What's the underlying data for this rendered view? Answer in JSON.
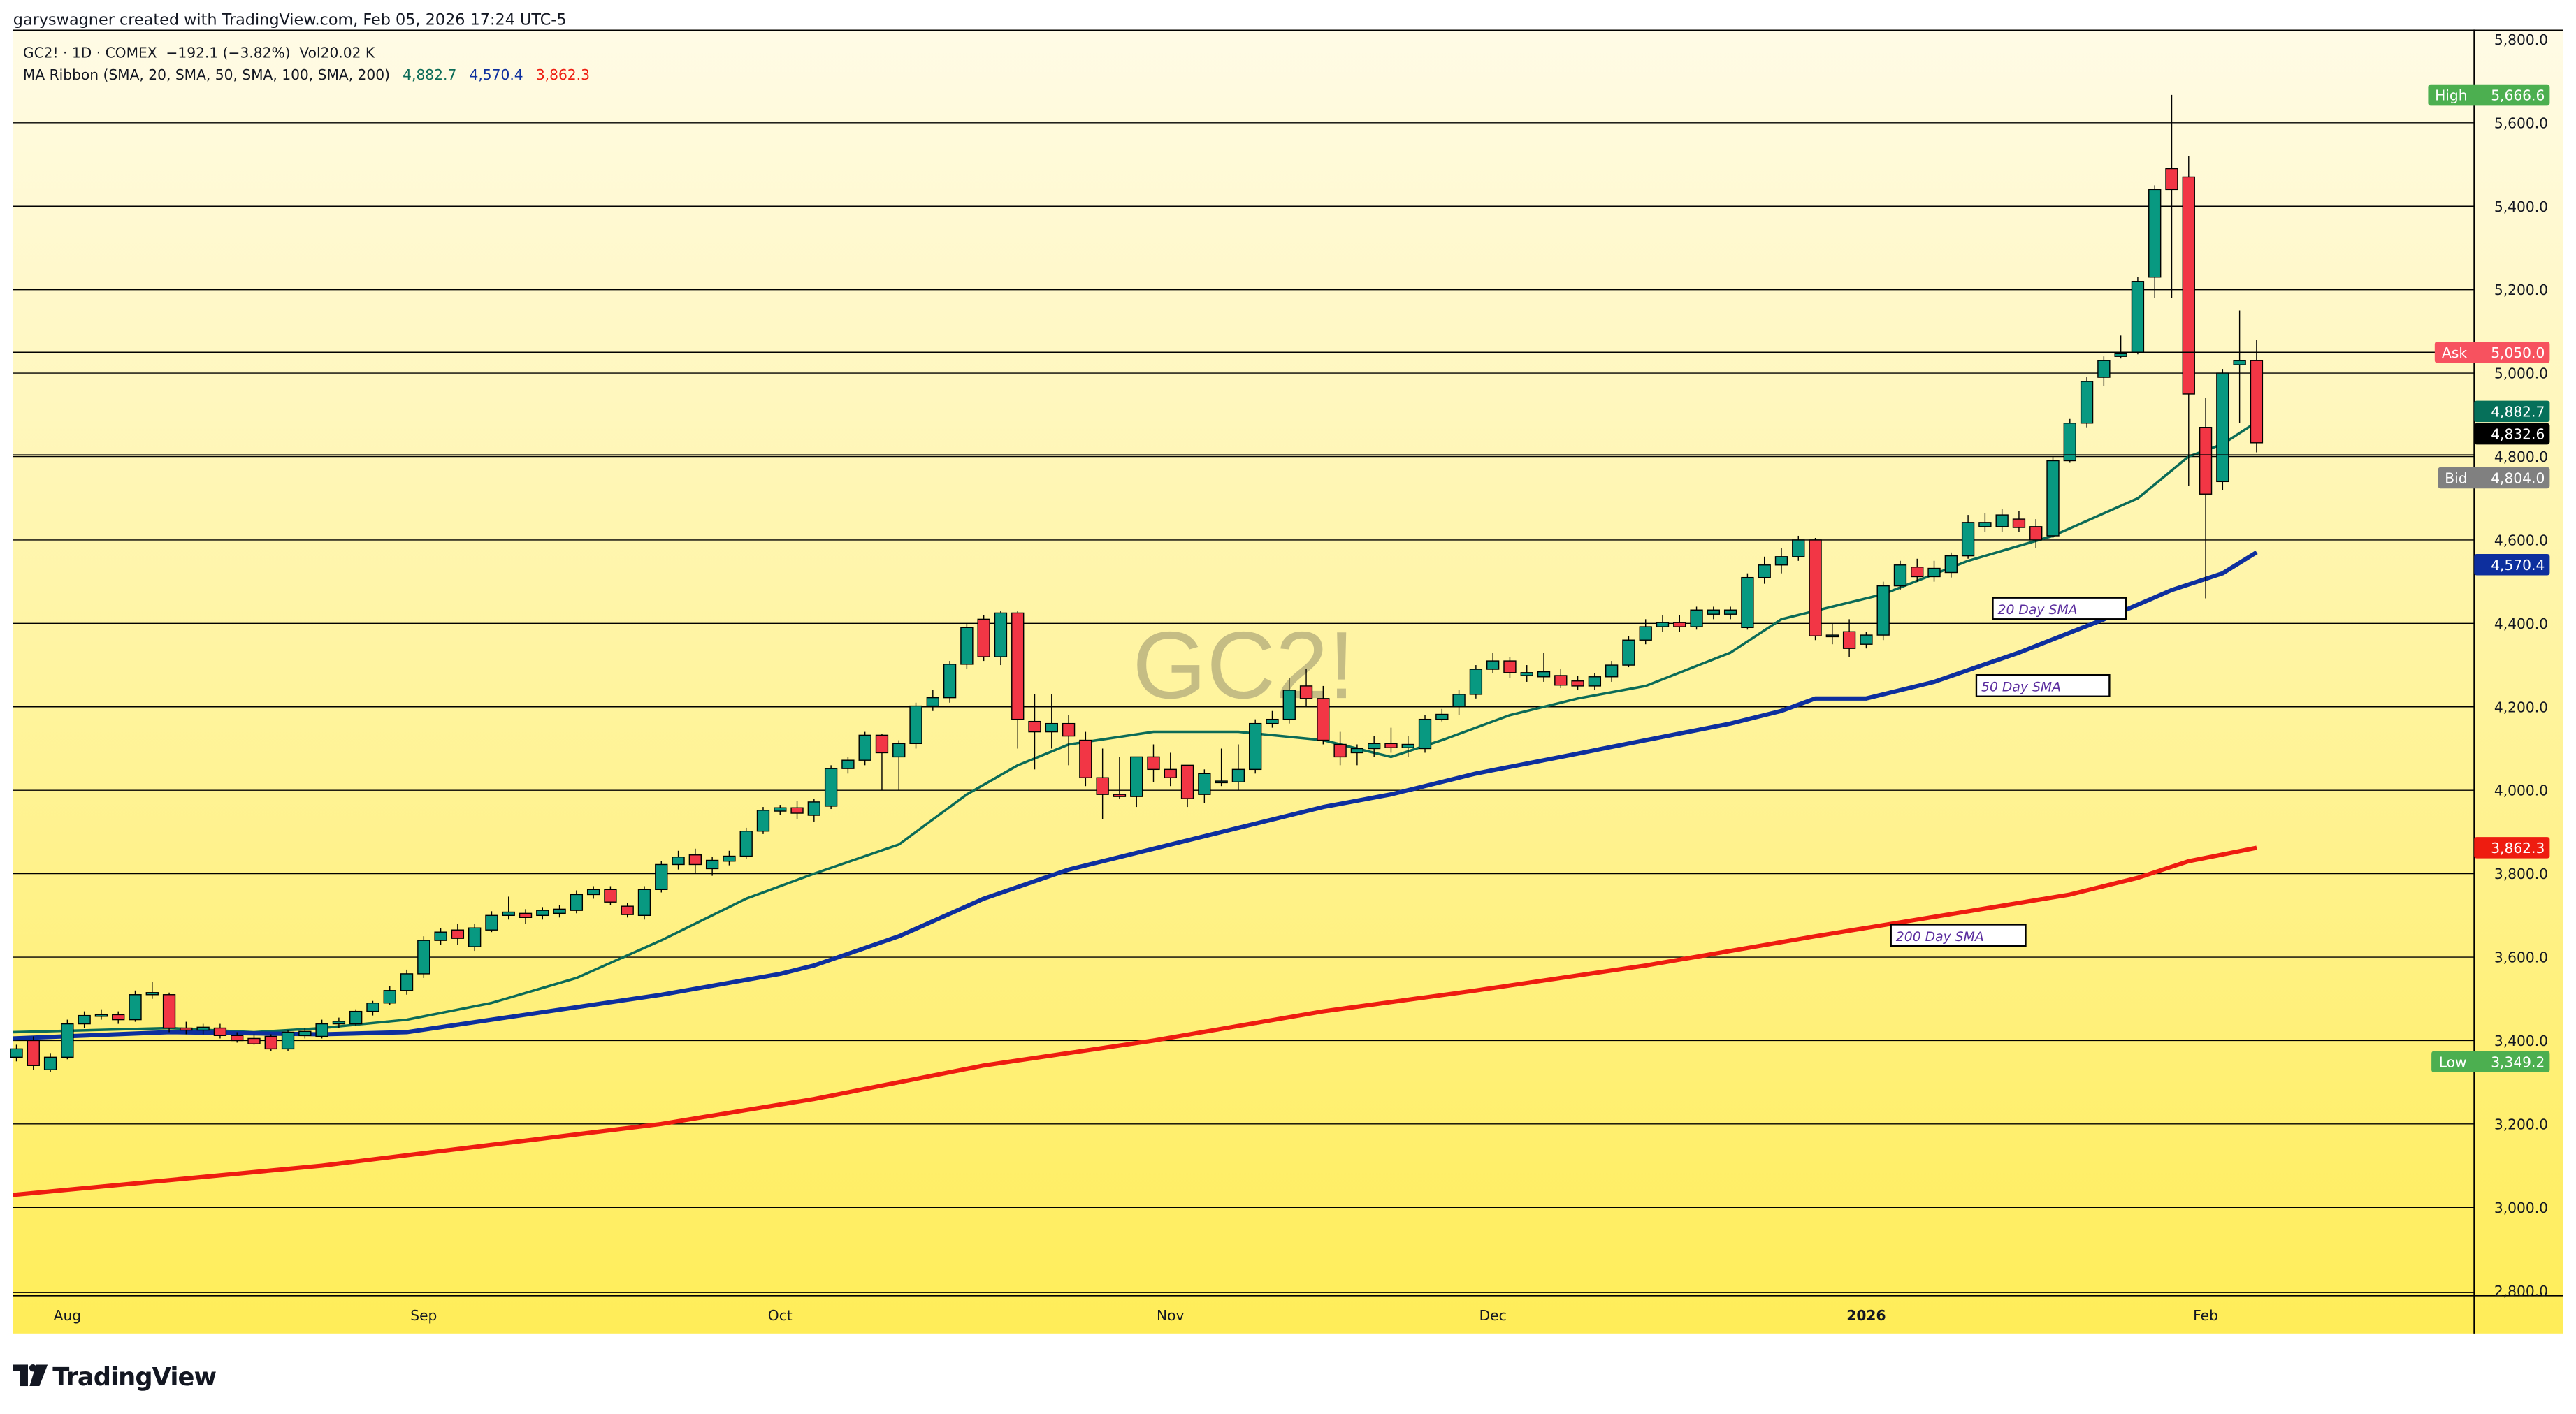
{
  "header": {
    "credit": "garyswagner created with TradingView.com, Feb 05, 2026 17:24 UTC-5",
    "symbol_line": "GC2! · 1D · COMEX  −192.1 (−3.82%)  Vol20.02 K",
    "ma_label": "MA Ribbon (SMA, 20, SMA, 50, SMA, 100, SMA, 200)",
    "ma_values": [
      "4,882.7",
      "4,570.4",
      "3,862.3"
    ]
  },
  "watermark": "GC2!",
  "logo": "TradingView",
  "colors": {
    "up": "#089981",
    "down": "#f23645",
    "sma20": "#0b6b57",
    "sma50": "#0d2f9e",
    "sma200": "#ee1c10",
    "bg_top": "#fffbe6",
    "bg_bottom": "#ffed58",
    "annotation_text": "#5b2d9e"
  },
  "annotations": [
    "20 Day SMA",
    "50 Day SMA",
    "200 Day SMA"
  ],
  "badges": {
    "high": {
      "label": "High",
      "value": "5,666.6",
      "color": "#4caf50"
    },
    "ask": {
      "label": "Ask",
      "value": "5,050.0",
      "color": "#f7525f"
    },
    "sma20": {
      "value": "4,882.7",
      "color": "#06705a"
    },
    "last": {
      "value": "4,832.6",
      "color": "#000000"
    },
    "bid": {
      "label": "Bid",
      "value": "4,804.0",
      "color": "#808080"
    },
    "sma50": {
      "value": "4,570.4",
      "color": "#0d2f9e"
    },
    "sma200": {
      "value": "3,862.3",
      "color": "#ee1c10"
    },
    "low": {
      "label": "Low",
      "value": "3,349.2",
      "color": "#4caf50"
    }
  },
  "chart_data": {
    "type": "candlestick",
    "title": "GC2! · 1D · COMEX",
    "ylim": [
      2800,
      5800
    ],
    "y_ticks": [
      "5,800.0",
      "5,600.0",
      "5,400.0",
      "5,200.0",
      "5,000.0",
      "4,800.0",
      "4,600.0",
      "4,400.0",
      "4,200.0",
      "4,000.0",
      "3,800.0",
      "3,600.0",
      "3,400.0",
      "3,200.0",
      "3,000.0",
      "2,800.0"
    ],
    "y_tick_values": [
      5800,
      5600,
      5400,
      5200,
      5000,
      4800,
      4600,
      4400,
      4200,
      4000,
      3800,
      3600,
      3400,
      3200,
      3000,
      2800
    ],
    "x_ticks": [
      {
        "label": "Aug",
        "bar": 3
      },
      {
        "label": "Sep",
        "bar": 24
      },
      {
        "label": "Oct",
        "bar": 45
      },
      {
        "label": "Nov",
        "bar": 68
      },
      {
        "label": "Dec",
        "bar": 87
      },
      {
        "label": "2026",
        "bar": 109
      },
      {
        "label": "Feb",
        "bar": 129
      }
    ],
    "ohlc_fields": [
      "open",
      "high",
      "low",
      "close"
    ],
    "ohlc": [
      [
        3360,
        3390,
        3350,
        3380
      ],
      [
        3400,
        3410,
        3330,
        3340
      ],
      [
        3330,
        3370,
        3325,
        3360
      ],
      [
        3360,
        3450,
        3355,
        3440
      ],
      [
        3440,
        3470,
        3430,
        3460
      ],
      [
        3460,
        3475,
        3450,
        3462
      ],
      [
        3462,
        3470,
        3440,
        3450
      ],
      [
        3450,
        3520,
        3445,
        3510
      ],
      [
        3510,
        3540,
        3500,
        3515
      ],
      [
        3510,
        3515,
        3420,
        3430
      ],
      [
        3430,
        3445,
        3415,
        3425
      ],
      [
        3425,
        3440,
        3415,
        3432
      ],
      [
        3430,
        3440,
        3405,
        3412
      ],
      [
        3412,
        3420,
        3395,
        3400
      ],
      [
        3405,
        3415,
        3390,
        3392
      ],
      [
        3410,
        3415,
        3375,
        3380
      ],
      [
        3380,
        3425,
        3375,
        3420
      ],
      [
        3412,
        3430,
        3405,
        3422
      ],
      [
        3410,
        3450,
        3405,
        3440
      ],
      [
        3440,
        3455,
        3430,
        3446
      ],
      [
        3440,
        3475,
        3435,
        3470
      ],
      [
        3470,
        3495,
        3460,
        3490
      ],
      [
        3490,
        3530,
        3485,
        3520
      ],
      [
        3520,
        3570,
        3510,
        3560
      ],
      [
        3560,
        3650,
        3550,
        3640
      ],
      [
        3640,
        3670,
        3630,
        3660
      ],
      [
        3665,
        3680,
        3630,
        3645
      ],
      [
        3625,
        3680,
        3615,
        3670
      ],
      [
        3665,
        3710,
        3660,
        3700
      ],
      [
        3700,
        3745,
        3690,
        3708
      ],
      [
        3705,
        3715,
        3680,
        3695
      ],
      [
        3700,
        3720,
        3690,
        3712
      ],
      [
        3705,
        3725,
        3695,
        3715
      ],
      [
        3712,
        3760,
        3705,
        3750
      ],
      [
        3750,
        3770,
        3740,
        3762
      ],
      [
        3762,
        3770,
        3725,
        3732
      ],
      [
        3722,
        3730,
        3695,
        3702
      ],
      [
        3700,
        3770,
        3690,
        3762
      ],
      [
        3762,
        3830,
        3755,
        3822
      ],
      [
        3822,
        3855,
        3810,
        3840
      ],
      [
        3845,
        3860,
        3800,
        3822
      ],
      [
        3812,
        3840,
        3795,
        3832
      ],
      [
        3830,
        3855,
        3820,
        3842
      ],
      [
        3842,
        3910,
        3835,
        3902
      ],
      [
        3902,
        3960,
        3895,
        3952
      ],
      [
        3950,
        3965,
        3940,
        3958
      ],
      [
        3958,
        3975,
        3930,
        3945
      ],
      [
        3940,
        3980,
        3925,
        3972
      ],
      [
        3962,
        4060,
        3955,
        4052
      ],
      [
        4052,
        4080,
        4040,
        4072
      ],
      [
        4072,
        4140,
        4060,
        4132
      ],
      [
        4132,
        4135,
        4000,
        4090
      ],
      [
        4080,
        4120,
        4000,
        4112
      ],
      [
        4112,
        4210,
        4100,
        4202
      ],
      [
        4202,
        4240,
        4190,
        4222
      ],
      [
        4222,
        4310,
        4210,
        4302
      ],
      [
        4302,
        4400,
        4290,
        4390
      ],
      [
        4410,
        4420,
        4310,
        4320
      ],
      [
        4320,
        4430,
        4300,
        4425
      ],
      [
        4425,
        4430,
        4100,
        4170
      ],
      [
        4165,
        4230,
        4050,
        4140
      ],
      [
        4140,
        4230,
        4100,
        4160
      ],
      [
        4160,
        4180,
        4060,
        4130
      ],
      [
        4120,
        4140,
        4010,
        4030
      ],
      [
        4030,
        4100,
        3930,
        3990
      ],
      [
        3990,
        4080,
        3980,
        3985
      ],
      [
        3985,
        4080,
        3960,
        4080
      ],
      [
        4080,
        4110,
        4020,
        4050
      ],
      [
        4050,
        4090,
        4010,
        4030
      ],
      [
        4060,
        4060,
        3960,
        3980
      ],
      [
        3990,
        4050,
        3970,
        4040
      ],
      [
        4020,
        4100,
        4010,
        4022
      ],
      [
        4020,
        4110,
        4000,
        4050
      ],
      [
        4050,
        4170,
        4040,
        4160
      ],
      [
        4160,
        4190,
        4150,
        4170
      ],
      [
        4170,
        4270,
        4160,
        4240
      ],
      [
        4250,
        4290,
        4200,
        4220
      ],
      [
        4220,
        4250,
        4110,
        4120
      ],
      [
        4110,
        4140,
        4060,
        4080
      ],
      [
        4090,
        4110,
        4060,
        4100
      ],
      [
        4100,
        4130,
        4080,
        4112
      ],
      [
        4112,
        4150,
        4090,
        4102
      ],
      [
        4102,
        4130,
        4080,
        4110
      ],
      [
        4100,
        4180,
        4090,
        4170
      ],
      [
        4170,
        4195,
        4165,
        4182
      ],
      [
        4200,
        4240,
        4180,
        4230
      ],
      [
        4230,
        4300,
        4220,
        4290
      ],
      [
        4290,
        4330,
        4280,
        4310
      ],
      [
        4310,
        4320,
        4270,
        4282
      ],
      [
        4275,
        4300,
        4260,
        4282
      ],
      [
        4272,
        4330,
        4260,
        4284
      ],
      [
        4275,
        4290,
        4245,
        4252
      ],
      [
        4262,
        4275,
        4240,
        4250
      ],
      [
        4250,
        4280,
        4240,
        4272
      ],
      [
        4272,
        4310,
        4260,
        4300
      ],
      [
        4300,
        4370,
        4295,
        4360
      ],
      [
        4360,
        4410,
        4350,
        4392
      ],
      [
        4392,
        4420,
        4380,
        4402
      ],
      [
        4402,
        4420,
        4380,
        4392
      ],
      [
        4392,
        4440,
        4385,
        4432
      ],
      [
        4422,
        4440,
        4410,
        4432
      ],
      [
        4422,
        4440,
        4410,
        4432
      ],
      [
        4390,
        4520,
        4385,
        4510
      ],
      [
        4510,
        4560,
        4495,
        4540
      ],
      [
        4540,
        4580,
        4520,
        4560
      ],
      [
        4560,
        4610,
        4550,
        4600
      ],
      [
        4600,
        4605,
        4360,
        4370
      ],
      [
        4370,
        4400,
        4350,
        4372
      ],
      [
        4380,
        4410,
        4320,
        4340
      ],
      [
        4350,
        4380,
        4340,
        4372
      ],
      [
        4372,
        4500,
        4360,
        4490
      ],
      [
        4490,
        4550,
        4480,
        4540
      ],
      [
        4535,
        4555,
        4500,
        4512
      ],
      [
        4512,
        4550,
        4500,
        4532
      ],
      [
        4522,
        4570,
        4510,
        4562
      ],
      [
        4562,
        4660,
        4555,
        4642
      ],
      [
        4632,
        4665,
        4620,
        4642
      ],
      [
        4632,
        4675,
        4620,
        4660
      ],
      [
        4650,
        4670,
        4620,
        4630
      ],
      [
        4632,
        4650,
        4580,
        4600
      ],
      [
        4610,
        4800,
        4605,
        4790
      ],
      [
        4790,
        4890,
        4785,
        4880
      ],
      [
        4880,
        4990,
        4870,
        4980
      ],
      [
        4990,
        5040,
        4970,
        5030
      ],
      [
        5040,
        5090,
        5035,
        5048
      ],
      [
        5050,
        5230,
        5045,
        5220
      ],
      [
        5230,
        5450,
        5180,
        5440
      ],
      [
        5490,
        5667,
        5180,
        5440
      ],
      [
        5470,
        5520,
        4730,
        4950
      ],
      [
        4870,
        4940,
        4460,
        4710
      ],
      [
        4740,
        5010,
        4720,
        5000
      ],
      [
        5020,
        5150,
        4880,
        5030
      ],
      [
        5030,
        5080,
        4810,
        4833
      ]
    ],
    "series": [
      {
        "name": "SMA 20",
        "points": [
          [
            0,
            3420
          ],
          [
            9,
            3430
          ],
          [
            14,
            3420
          ],
          [
            18,
            3430
          ],
          [
            23,
            3450
          ],
          [
            28,
            3490
          ],
          [
            33,
            3550
          ],
          [
            38,
            3640
          ],
          [
            43,
            3740
          ],
          [
            47,
            3800
          ],
          [
            52,
            3870
          ],
          [
            56,
            3990
          ],
          [
            59,
            4060
          ],
          [
            62,
            4110
          ],
          [
            67,
            4140
          ],
          [
            72,
            4140
          ],
          [
            77,
            4120
          ],
          [
            81,
            4080
          ],
          [
            84,
            4120
          ],
          [
            88,
            4180
          ],
          [
            92,
            4220
          ],
          [
            96,
            4250
          ],
          [
            101,
            4330
          ],
          [
            104,
            4410
          ],
          [
            107,
            4440
          ],
          [
            110,
            4470
          ],
          [
            115,
            4550
          ],
          [
            120,
            4610
          ],
          [
            125,
            4700
          ],
          [
            128,
            4800
          ],
          [
            130,
            4830
          ],
          [
            132,
            4882.7
          ]
        ]
      },
      {
        "name": "SMA 50",
        "points": [
          [
            0,
            3405
          ],
          [
            9,
            3420
          ],
          [
            18,
            3415
          ],
          [
            23,
            3420
          ],
          [
            28,
            3450
          ],
          [
            38,
            3510
          ],
          [
            45,
            3560
          ],
          [
            47,
            3580
          ],
          [
            52,
            3650
          ],
          [
            57,
            3740
          ],
          [
            62,
            3810
          ],
          [
            67,
            3860
          ],
          [
            72,
            3910
          ],
          [
            77,
            3960
          ],
          [
            81,
            3990
          ],
          [
            86,
            4040
          ],
          [
            91,
            4080
          ],
          [
            96,
            4120
          ],
          [
            101,
            4160
          ],
          [
            104,
            4190
          ],
          [
            106,
            4220
          ],
          [
            109,
            4220
          ],
          [
            113,
            4260
          ],
          [
            118,
            4330
          ],
          [
            123,
            4410
          ],
          [
            127,
            4480
          ],
          [
            130,
            4520
          ],
          [
            132,
            4570.4
          ]
        ]
      },
      {
        "name": "SMA 200",
        "points": [
          [
            0,
            3030
          ],
          [
            18,
            3100
          ],
          [
            28,
            3150
          ],
          [
            38,
            3200
          ],
          [
            47,
            3260
          ],
          [
            57,
            3340
          ],
          [
            67,
            3400
          ],
          [
            77,
            3470
          ],
          [
            86,
            3520
          ],
          [
            96,
            3580
          ],
          [
            106,
            3650
          ],
          [
            115,
            3710
          ],
          [
            121,
            3750
          ],
          [
            125,
            3790
          ],
          [
            128,
            3830
          ],
          [
            132,
            3862.3
          ]
        ]
      }
    ]
  }
}
